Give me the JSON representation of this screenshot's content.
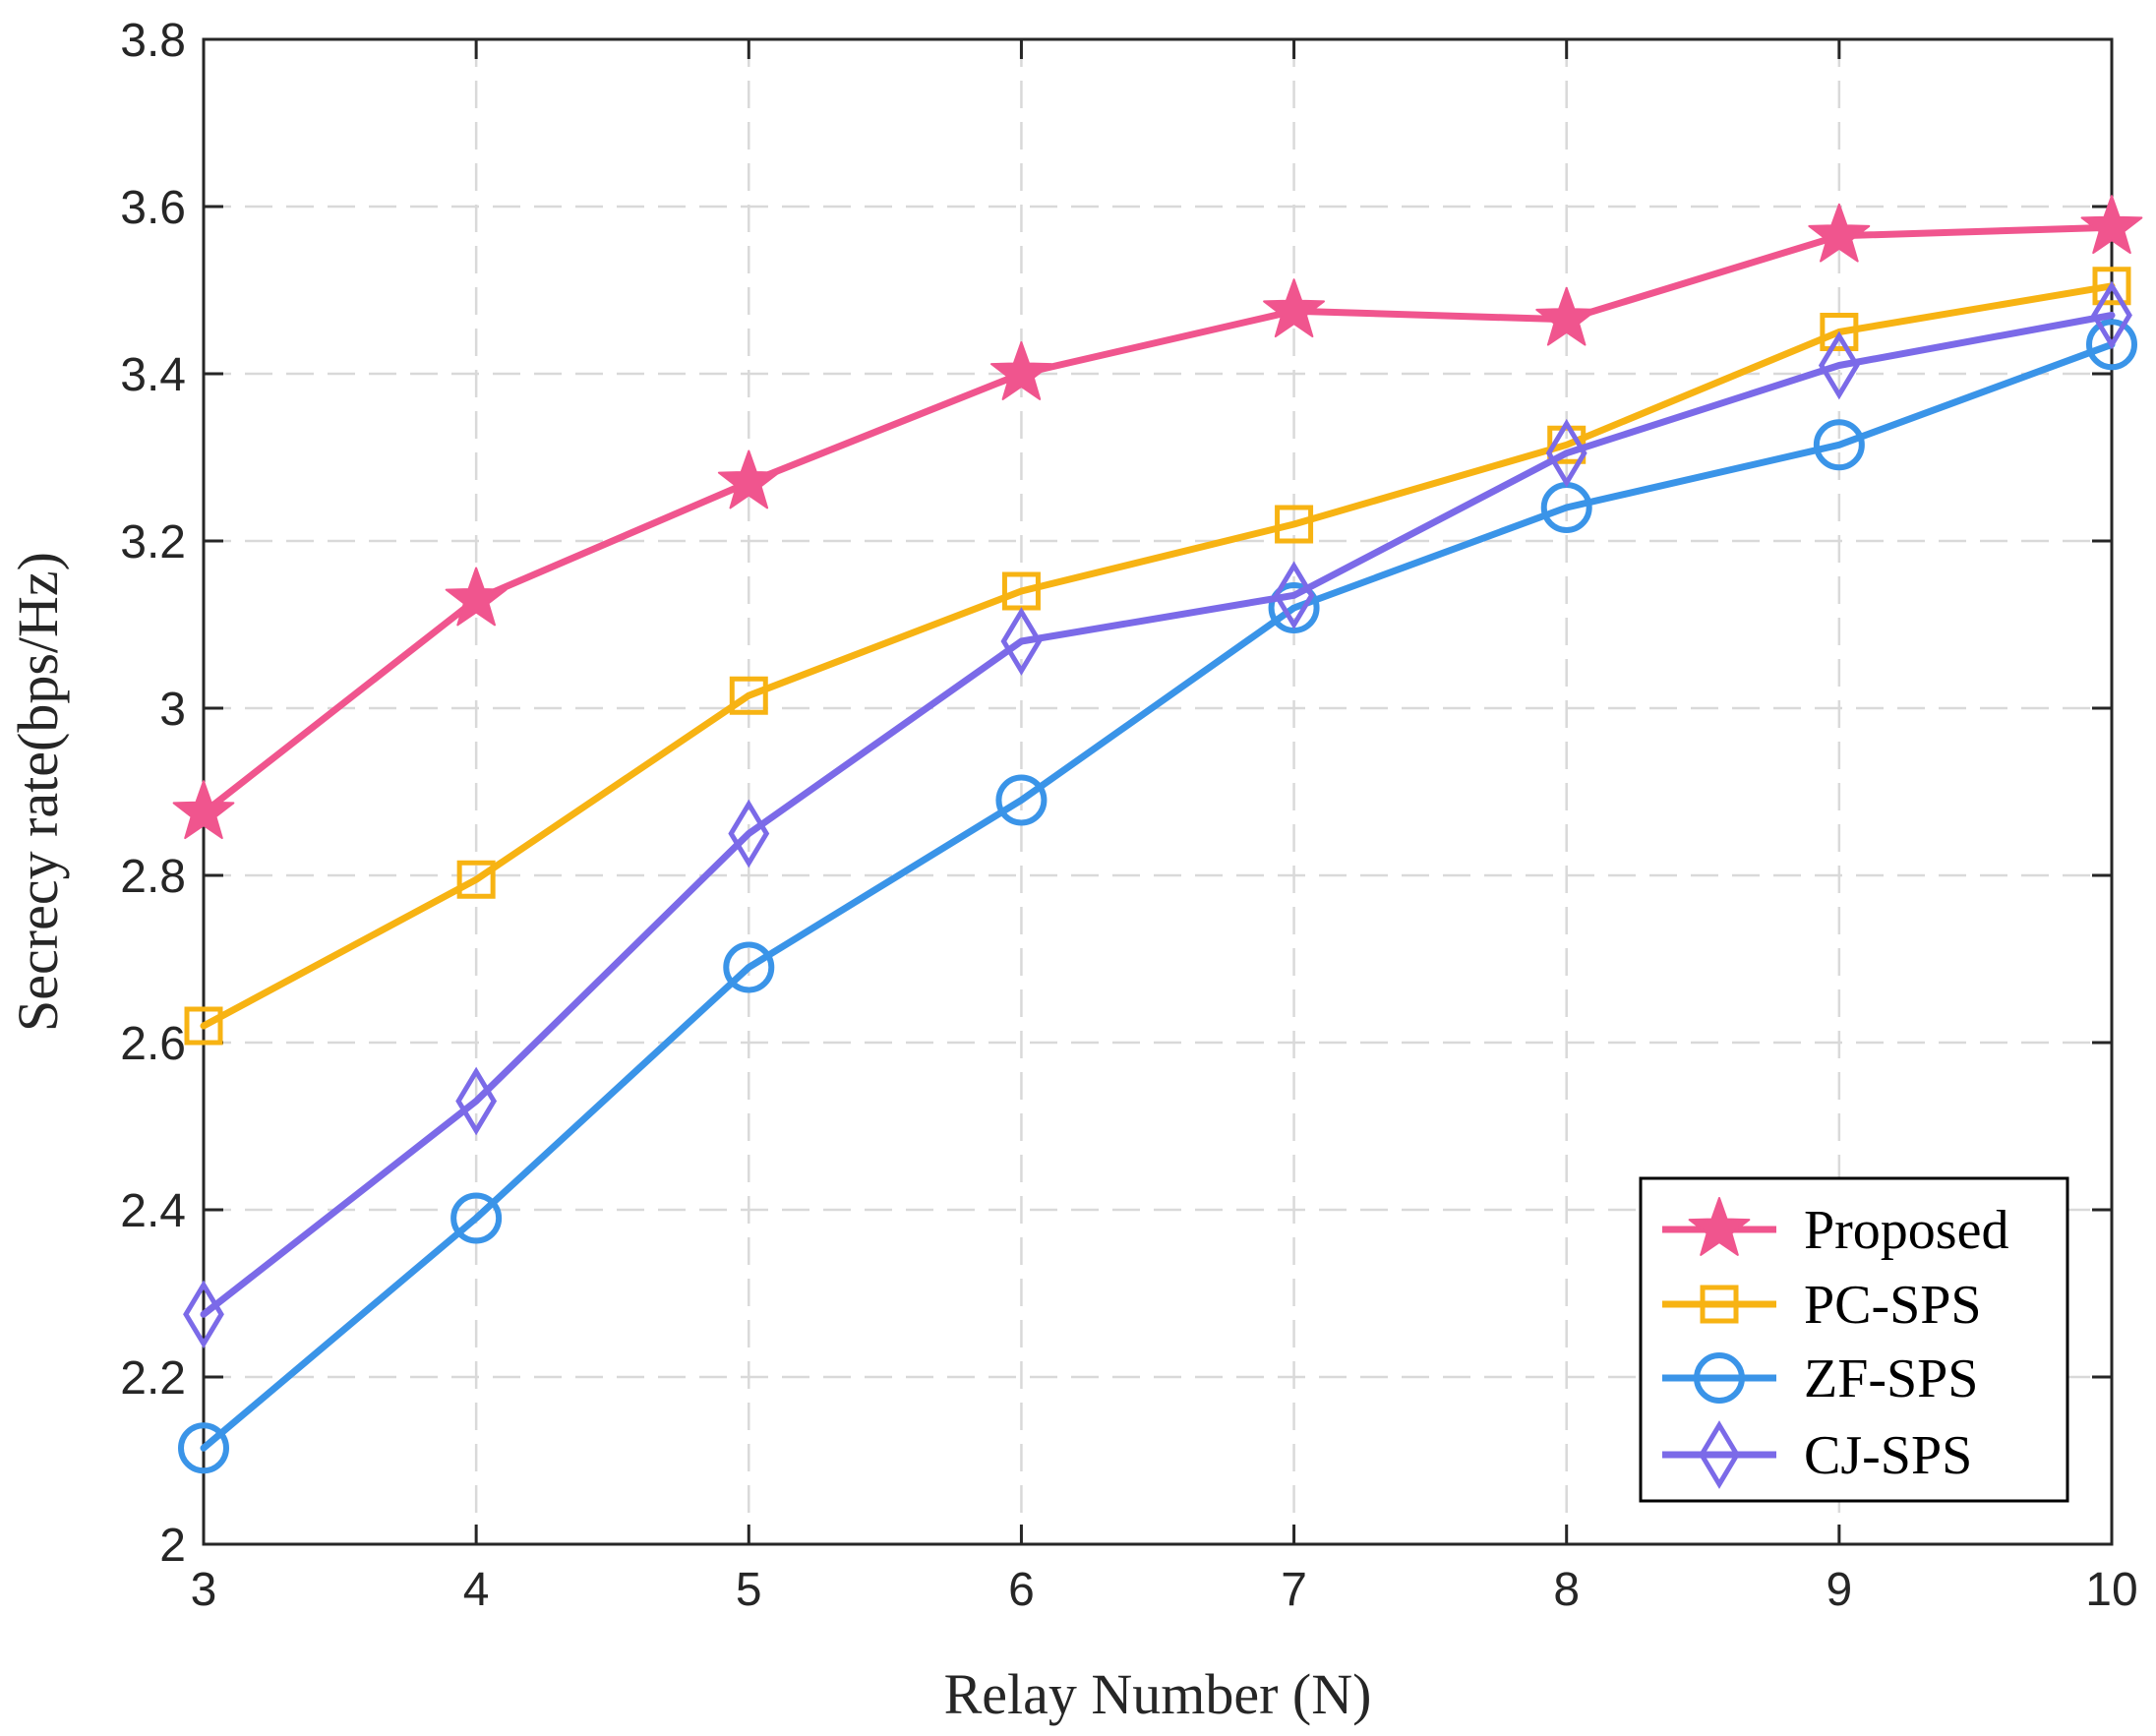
{
  "chart_data": {
    "type": "line",
    "title": "",
    "xlabel": "Relay Number (N)",
    "ylabel": "Secrecy rate(bps/Hz)",
    "x": [
      3,
      4,
      5,
      6,
      7,
      8,
      9,
      10
    ],
    "xlim": [
      3,
      10
    ],
    "ylim": [
      2,
      3.8
    ],
    "xticks": [
      3,
      4,
      5,
      6,
      7,
      8,
      9,
      10
    ],
    "xtick_labels": [
      "3",
      "4",
      "5",
      "6",
      "7",
      "8",
      "9",
      "10"
    ],
    "yticks": [
      2,
      2.2,
      2.4,
      2.6,
      2.8,
      3,
      3.2,
      3.4,
      3.6,
      3.8
    ],
    "ytick_labels": [
      "2",
      "2.2",
      "2.4",
      "2.6",
      "2.8",
      "3",
      "3.2",
      "3.4",
      "3.6",
      "3.8"
    ],
    "grid": true,
    "legend_position": "bottom-right",
    "series": [
      {
        "name": "Proposed",
        "marker": "star",
        "color": "#F0558E",
        "values": [
          2.875,
          3.13,
          3.27,
          3.4,
          3.475,
          3.465,
          3.565,
          3.575
        ]
      },
      {
        "name": "PC-SPS",
        "marker": "square",
        "color": "#F7B313",
        "values": [
          2.62,
          2.795,
          3.015,
          3.14,
          3.22,
          3.315,
          3.45,
          3.505
        ]
      },
      {
        "name": "ZF-SPS",
        "marker": "circle",
        "color": "#3A94E8",
        "values": [
          2.115,
          2.39,
          2.69,
          2.89,
          3.12,
          3.24,
          3.315,
          3.435
        ]
      },
      {
        "name": "CJ-SPS",
        "marker": "diamond",
        "color": "#7B6AE8",
        "values": [
          2.275,
          2.53,
          2.85,
          3.08,
          3.135,
          3.305,
          3.41,
          3.47
        ]
      }
    ]
  }
}
